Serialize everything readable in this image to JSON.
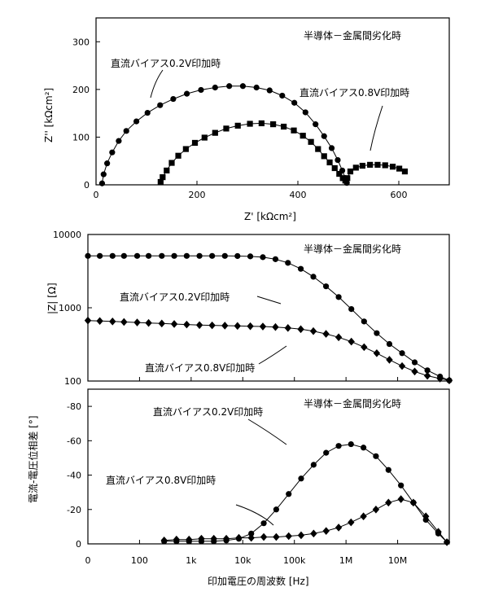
{
  "chart_data": [
    {
      "type": "scatter",
      "name": "nyquist",
      "title": "半導体－金属間劣化時",
      "xlabel": "Z' [kΩcm²]",
      "ylabel": "Z'' [kΩcm²]",
      "xlim": [
        0,
        700
      ],
      "ylim": [
        0,
        350
      ],
      "xticks": [
        "0",
        "200",
        "400",
        "600"
      ],
      "yticks": [
        "0",
        "100",
        "200",
        "300"
      ],
      "grid": false,
      "series": [
        {
          "name": "直流バイアス0.2V印加時",
          "marker": "circle",
          "x": [
            12,
            15,
            22,
            32,
            45,
            60,
            80,
            102,
            127,
            153,
            180,
            208,
            236,
            264,
            291,
            318,
            344,
            369,
            393,
            415,
            435,
            452,
            467,
            479,
            488,
            494,
            497
          ],
          "y": [
            3,
            22,
            45,
            68,
            92,
            113,
            133,
            151,
            167,
            180,
            191,
            199,
            204,
            207,
            207,
            204,
            198,
            187,
            172,
            152,
            127,
            102,
            77,
            52,
            30,
            14,
            4
          ]
        },
        {
          "name": "直流バイアス0.8V印加時",
          "marker": "square",
          "x": [
            128,
            132,
            140,
            150,
            163,
            178,
            196,
            215,
            236,
            258,
            281,
            305,
            328,
            351,
            372,
            392,
            410,
            426,
            440,
            452,
            463,
            473,
            482,
            489,
            494,
            498,
            504,
            515,
            528,
            543,
            558,
            573,
            588,
            601,
            612
          ],
          "y": [
            6,
            16,
            30,
            46,
            61,
            75,
            88,
            99,
            109,
            118,
            124,
            128,
            129,
            127,
            122,
            114,
            103,
            90,
            75,
            60,
            47,
            35,
            23,
            14,
            9,
            14,
            28,
            36,
            40,
            42,
            42,
            41,
            38,
            34,
            28
          ]
        }
      ],
      "annotations": [
        "直流バイアス0.2V印加時",
        "直流バイアス0.8V印加時"
      ]
    },
    {
      "type": "scatter",
      "name": "bode-magnitude",
      "title": "半導体－金属間劣化時",
      "xlabel": "",
      "ylabel": "|Z| [Ω]",
      "xscale": "log",
      "yscale": "log",
      "xlim": [
        1,
        10000000
      ],
      "ylim": [
        100,
        10000
      ],
      "yticks": [
        "100",
        "1000",
        "10000"
      ],
      "grid": false,
      "series": [
        {
          "name": "直流バイアス0.2V印加時",
          "marker": "circle",
          "x": [
            1,
            1.7,
            3,
            5,
            9,
            15,
            27,
            47,
            82,
            145,
            255,
            450,
            790,
            1400,
            2450,
            4300,
            7500,
            13300,
            23300,
            41000,
            72000,
            127000,
            224000,
            394000,
            693000,
            1220000,
            2140000,
            3770000,
            6630000,
            10000000
          ],
          "y": [
            5100,
            5100,
            5100,
            5100,
            5100,
            5100,
            5100,
            5100,
            5100,
            5100,
            5100,
            5100,
            5080,
            5030,
            4900,
            4600,
            4100,
            3400,
            2650,
            1960,
            1400,
            960,
            650,
            450,
            320,
            240,
            180,
            140,
            115,
            102
          ]
        },
        {
          "name": "直流バイアス0.8V印加時",
          "marker": "diamond",
          "x": [
            1,
            1.7,
            3,
            5,
            9,
            15,
            27,
            47,
            82,
            145,
            255,
            450,
            790,
            1400,
            2450,
            4300,
            7500,
            13300,
            23300,
            41000,
            72000,
            127000,
            224000,
            394000,
            693000,
            1220000,
            2140000,
            3770000,
            6630000,
            10000000
          ],
          "y": [
            670,
            660,
            650,
            640,
            630,
            620,
            610,
            600,
            590,
            580,
            575,
            570,
            565,
            560,
            555,
            545,
            530,
            510,
            480,
            440,
            395,
            345,
            290,
            240,
            195,
            160,
            135,
            118,
            108,
            102
          ]
        }
      ],
      "annotations": [
        "直流バイアス0.2V印加時",
        "直流バイアス0.8V印加時"
      ]
    },
    {
      "type": "scatter",
      "name": "bode-phase",
      "title": "半導体－金属間劣化時",
      "xlabel": "印加電圧の周波数 [Hz]",
      "ylabel": "電流-電圧位相差 [°]",
      "xscale": "log",
      "xlim": [
        1,
        10000000
      ],
      "ylim": [
        0,
        -90
      ],
      "xticks": [
        "0",
        "100",
        "1k",
        "10k",
        "100k",
        "1M",
        "10M"
      ],
      "yticks": [
        "0",
        "-20",
        "-40",
        "-60",
        "-80"
      ],
      "grid": false,
      "series": [
        {
          "name": "直流バイアス0.2V印加時",
          "marker": "circle",
          "x": [
            30,
            52,
            91,
            158,
            275,
            480,
            840,
            1460,
            2550,
            4450,
            7760,
            13500,
            23600,
            41200,
            72000,
            125000,
            218000,
            380000,
            664000,
            1160000,
            2020000,
            3520000,
            6140000,
            9000000
          ],
          "y": [
            -1.5,
            -1.5,
            -1.5,
            -1.5,
            -1.5,
            -2,
            -3,
            -6,
            -12,
            -20,
            -29,
            -38,
            -46,
            -53,
            -57,
            -58,
            -56,
            -51,
            -43,
            -34,
            -24,
            -14,
            -6,
            -1
          ]
        },
        {
          "name": "直流バイアス0.8V印加時",
          "marker": "diamond",
          "x": [
            30,
            52,
            91,
            158,
            275,
            480,
            840,
            1460,
            2550,
            4450,
            7760,
            13500,
            23600,
            41200,
            72000,
            125000,
            218000,
            380000,
            664000,
            1160000,
            2020000,
            3520000,
            6140000,
            9000000
          ],
          "y": [
            -2,
            -2.5,
            -2.5,
            -3,
            -3,
            -3,
            -3.5,
            -3.5,
            -4,
            -4,
            -4.5,
            -5,
            -6,
            -7.5,
            -9.5,
            -12.5,
            -16,
            -20,
            -24,
            -26,
            -24,
            -16,
            -7,
            -1
          ]
        }
      ],
      "annotations": [
        "直流バイアス0.2V印加時",
        "直流バイアス0.8V印加時"
      ]
    }
  ]
}
